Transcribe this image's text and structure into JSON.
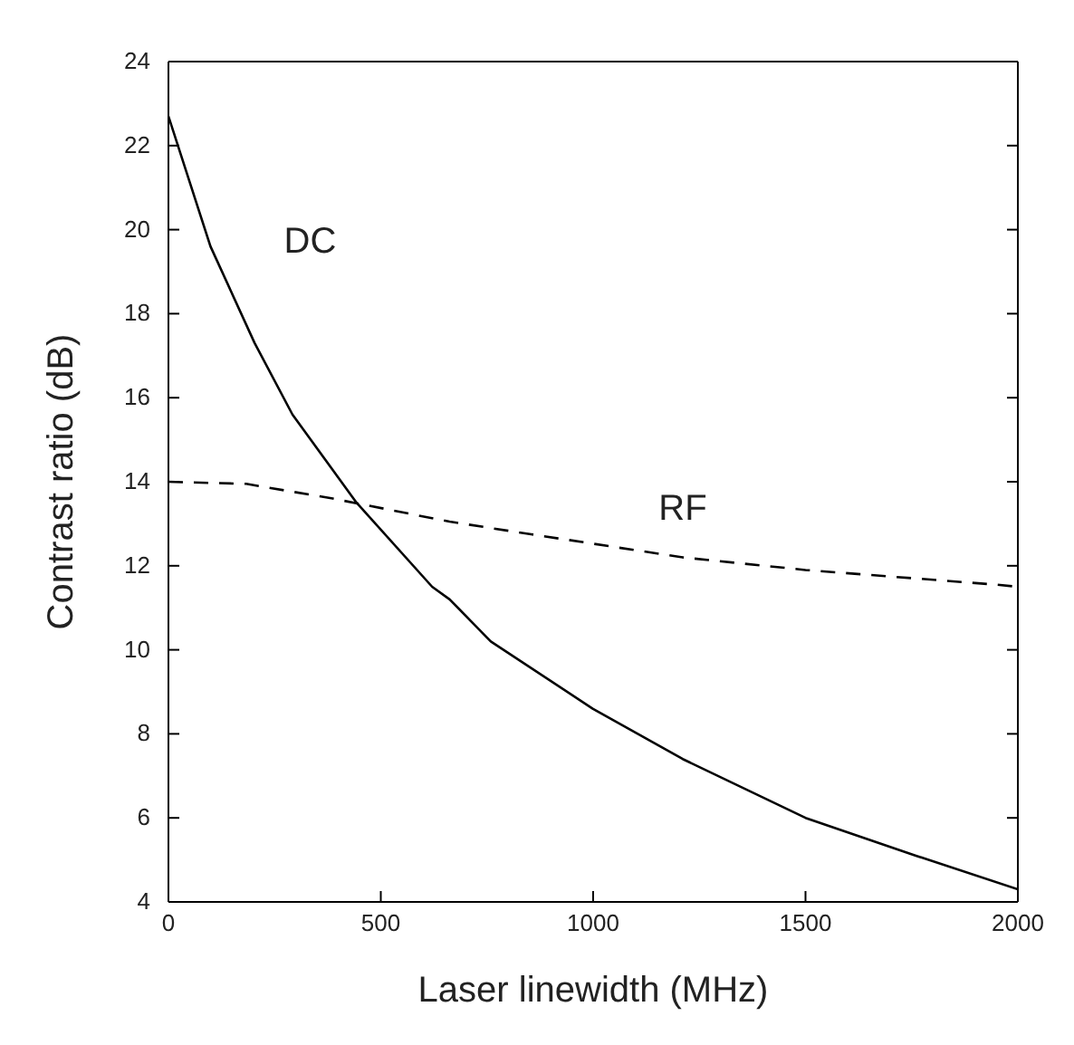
{
  "chart_data": {
    "type": "line",
    "xlabel": "Laser linewidth (MHz)",
    "ylabel": "Contrast ratio (dB)",
    "xlim": [
      0,
      2000
    ],
    "xticks": [
      0,
      500,
      1000,
      1500,
      2000
    ],
    "ylim": [
      4,
      24
    ],
    "yticks": [
      4,
      6,
      8,
      10,
      12,
      14,
      16,
      18,
      20,
      22,
      24
    ],
    "grid": false,
    "legend": false,
    "marker": "none",
    "series": [
      {
        "name": "DC",
        "color": "#000000",
        "line_style": "solid",
        "x": [
          0,
          99,
          203,
          292,
          443,
          621,
          662,
          759,
          999,
          1211,
          1500,
          1760,
          2000
        ],
        "values": [
          22.7,
          19.6,
          17.3,
          15.6,
          13.5,
          11.5,
          11.2,
          10.2,
          8.6,
          7.4,
          6.0,
          5.1,
          4.3
        ]
      },
      {
        "name": "RF",
        "color": "#000000",
        "line_style": "dashed",
        "x": [
          0,
          183,
          387,
          662,
          854,
          1211,
          1500,
          1950,
          2000
        ],
        "values": [
          14.0,
          13.95,
          13.6,
          13.05,
          12.75,
          12.2,
          11.9,
          11.55,
          11.5
        ]
      }
    ]
  }
}
